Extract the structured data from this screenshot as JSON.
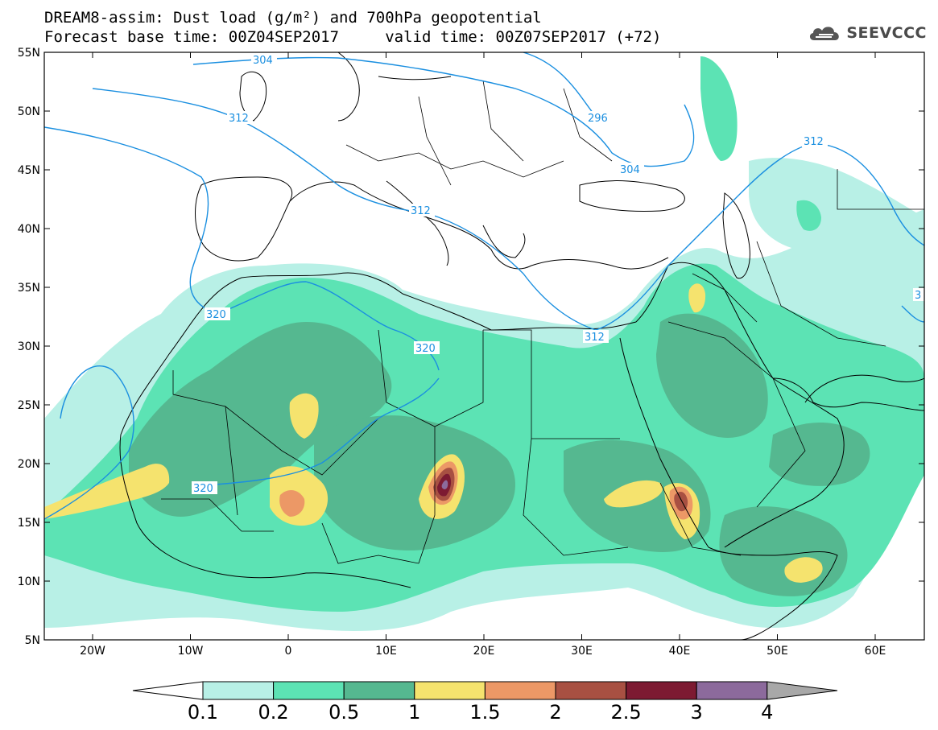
{
  "title": {
    "line1": "DREAM8-assim: Dust load (g/m²) and 700hPa geopotential",
    "line2": "Forecast base time: 00Z04SEP2017     valid time: 00Z07SEP2017 (+72)"
  },
  "logo": {
    "text": "SEEVCCC",
    "icon": "cloud-icon"
  },
  "axes": {
    "lat_labels": [
      "55N",
      "50N",
      "45N",
      "40N",
      "35N",
      "30N",
      "25N",
      "20N",
      "15N",
      "10N",
      "5N"
    ],
    "lon_labels": [
      "20W",
      "10W",
      "0",
      "10E",
      "20E",
      "30E",
      "40E",
      "50E",
      "60E"
    ]
  },
  "geopotential_labels": [
    "304",
    "312",
    "296",
    "304",
    "312",
    "312",
    "312",
    "320",
    "320",
    "320",
    "3"
  ],
  "colorbar": {
    "ticks": [
      "0.1",
      "0.2",
      "0.5",
      "1",
      "1.5",
      "2",
      "2.5",
      "3",
      "4"
    ],
    "colors": [
      "#b8f0e6",
      "#5ce3b4",
      "#55b890",
      "#f5e36e",
      "#ec9866",
      "#a85042",
      "#7d1a32",
      "#8c6a9c"
    ],
    "under_color": "#ffffff",
    "over_color": "#a8a8a8"
  },
  "colors": {
    "geopotential": "#1a8fe0",
    "coastline": "#000000"
  }
}
